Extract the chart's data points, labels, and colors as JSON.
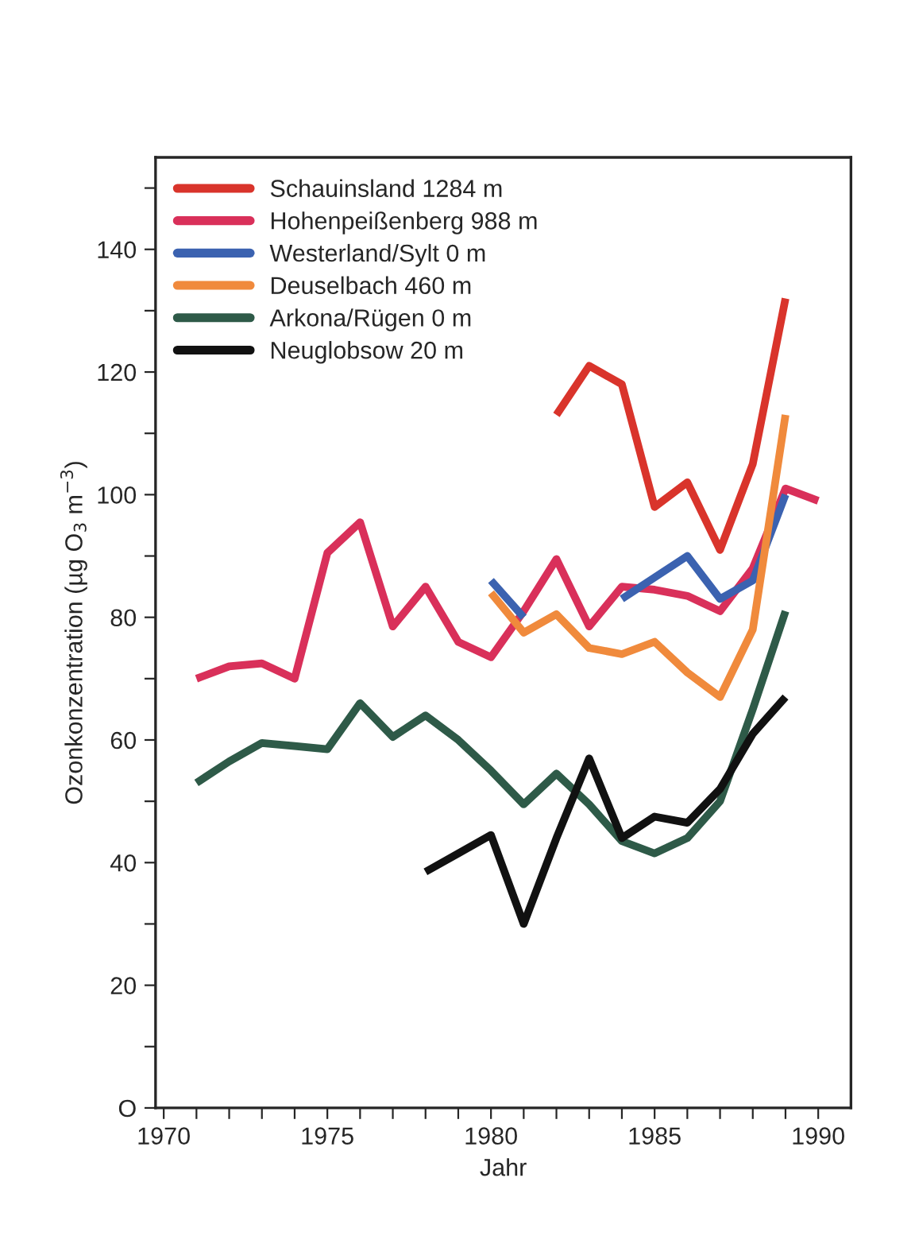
{
  "chart_data": {
    "type": "line",
    "xlabel": "Jahr",
    "ylabel": "Ozonkonzentration (µg O$_{3}$ m$^{−3}$)",
    "x": [
      1971,
      1972,
      1973,
      1974,
      1975,
      1976,
      1977,
      1978,
      1979,
      1980,
      1981,
      1982,
      1983,
      1984,
      1985,
      1986,
      1987,
      1988,
      1989,
      1990
    ],
    "series": [
      {
        "name": "Schauinsland 1284 m",
        "color": "#d9342b",
        "values": [
          null,
          null,
          null,
          null,
          null,
          null,
          null,
          null,
          null,
          null,
          null,
          113,
          121,
          118,
          98,
          102,
          91,
          105,
          132,
          null
        ]
      },
      {
        "name": "Hohenpeißenberg 988 m",
        "color": "#d9305a",
        "values": [
          70,
          72,
          72.5,
          70,
          90.5,
          95.5,
          78.5,
          85,
          76,
          73.5,
          81,
          89.5,
          78.5,
          85,
          84.5,
          83.5,
          81,
          88,
          101,
          99
        ]
      },
      {
        "name": "Westerland/Sylt 0 m",
        "color": "#3b62b0",
        "values": [
          null,
          null,
          null,
          null,
          null,
          null,
          null,
          null,
          null,
          86,
          80,
          null,
          null,
          83,
          86.5,
          90,
          83,
          86,
          100,
          null
        ]
      },
      {
        "name": "Deuselbach 460 m",
        "color": "#f08a3c",
        "values": [
          null,
          null,
          null,
          null,
          null,
          null,
          null,
          null,
          null,
          84,
          77.5,
          80.5,
          75,
          74,
          76,
          71,
          67,
          78,
          113,
          null
        ]
      },
      {
        "name": "Arkona/Rügen 0 m",
        "color": "#2e5a48",
        "values": [
          53,
          56.5,
          59.5,
          59,
          58.5,
          66,
          60.5,
          64,
          60,
          55,
          49.5,
          54.5,
          49.5,
          43.5,
          41.5,
          44,
          50,
          65,
          81,
          null
        ]
      },
      {
        "name": "Neuglobsow 20 m",
        "color": "#111111",
        "values": [
          null,
          null,
          null,
          null,
          null,
          null,
          null,
          38.5,
          41.5,
          44.5,
          30,
          44,
          57,
          44,
          47.5,
          46.5,
          52,
          61,
          67,
          null
        ]
      }
    ],
    "xlim": [
      1969.75,
      1991
    ],
    "xticks": [
      {
        "value": 1970,
        "label": "1970"
      },
      {
        "value": 1971,
        "label": null
      },
      {
        "value": 1972,
        "label": null
      },
      {
        "value": 1973,
        "label": null
      },
      {
        "value": 1974,
        "label": null
      },
      {
        "value": 1975,
        "label": "1975"
      },
      {
        "value": 1976,
        "label": null
      },
      {
        "value": 1977,
        "label": null
      },
      {
        "value": 1978,
        "label": null
      },
      {
        "value": 1979,
        "label": null
      },
      {
        "value": 1980,
        "label": "1980"
      },
      {
        "value": 1981,
        "label": null
      },
      {
        "value": 1982,
        "label": null
      },
      {
        "value": 1983,
        "label": null
      },
      {
        "value": 1984,
        "label": null
      },
      {
        "value": 1985,
        "label": "1985"
      },
      {
        "value": 1986,
        "label": null
      },
      {
        "value": 1987,
        "label": null
      },
      {
        "value": 1988,
        "label": null
      },
      {
        "value": 1989,
        "label": null
      },
      {
        "value": 1990,
        "label": "1990"
      }
    ],
    "ylim": [
      0,
      155
    ],
    "yticks": [
      {
        "value": 0,
        "label": "O"
      },
      {
        "value": 10,
        "label": null
      },
      20,
      {
        "value": 30,
        "label": null
      },
      40,
      {
        "value": 50,
        "label": null
      },
      60,
      {
        "value": 70,
        "label": null
      },
      80,
      {
        "value": 90,
        "label": null
      },
      100,
      {
        "value": 110,
        "label": null
      },
      120,
      {
        "value": 130,
        "label": null
      },
      140,
      {
        "value": 150,
        "label": null
      }
    ],
    "grid": false,
    "legend": "top left",
    "marker": "none",
    "line_style": "solid"
  }
}
